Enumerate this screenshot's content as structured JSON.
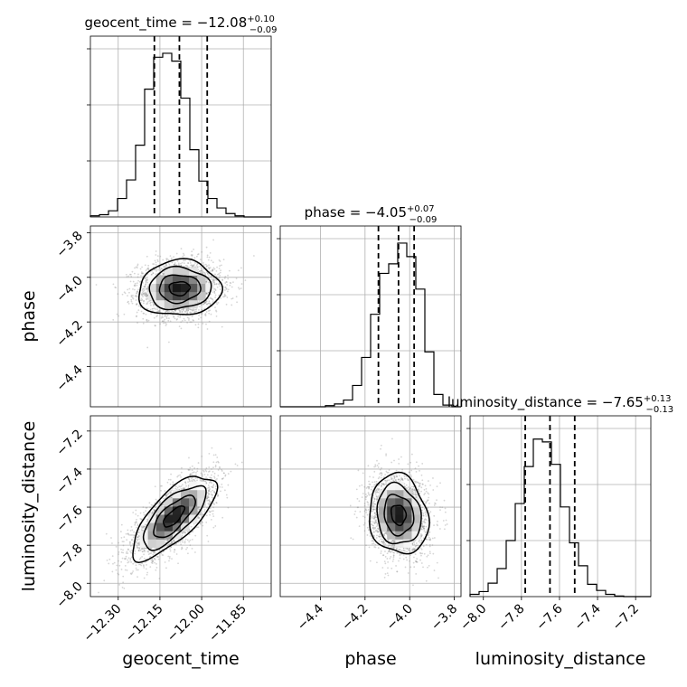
{
  "chart_data": {
    "type": "corner",
    "parameters": [
      "geocent_time",
      "phase",
      "luminosity_distance"
    ],
    "axis_labels": {
      "geocent_time": "geocent_time",
      "phase": "phase",
      "luminosity_distance": "luminosity_distance"
    },
    "ranges": {
      "geocent_time": [
        -12.4,
        -11.75
      ],
      "phase": [
        -4.58,
        -3.77
      ],
      "luminosity_distance": [
        -8.07,
        -7.12
      ]
    },
    "ticks": {
      "geocent_time": [
        -12.3,
        -12.15,
        -12.0,
        -11.85
      ],
      "phase_x": [
        -4.4,
        -4.2,
        -4.0,
        -3.8
      ],
      "phase_y": [
        -3.8,
        -4.0,
        -4.2,
        -4.4
      ],
      "luminosity_distance_x": [
        -8.0,
        -7.8,
        -7.6,
        -7.4,
        -7.2
      ],
      "luminosity_distance_y": [
        -7.2,
        -7.4,
        -7.6,
        -7.8,
        -8.0
      ]
    },
    "tick_labels": {
      "geocent_time": [
        "−12.30",
        "−12.15",
        "−12.00",
        "−11.85"
      ],
      "phase_x": [
        "−4.4",
        "−4.2",
        "−4.0",
        "−3.8"
      ],
      "phase_y": [
        "−3.8",
        "−4.0",
        "−4.2",
        "−4.4"
      ],
      "luminosity_distance_x": [
        "−8.0",
        "−7.8",
        "−7.6",
        "−7.4",
        "−7.2"
      ],
      "luminosity_distance_y": [
        "−7.2",
        "−7.4",
        "−7.6",
        "−7.8",
        "−8.0"
      ]
    },
    "titles": [
      {
        "param": "geocent_time",
        "prefix": "geocent_time = ",
        "median": "−12.08",
        "plus": "+0.10",
        "minus": "−0.09"
      },
      {
        "param": "phase",
        "prefix": "phase = ",
        "median": "−4.05",
        "plus": "+0.07",
        "minus": "−0.09"
      },
      {
        "param": "luminosity_distance",
        "prefix": "luminosity_distance = ",
        "median": "−7.65",
        "plus": "+0.13",
        "minus": "−0.13"
      }
    ],
    "quantiles": {
      "geocent_time": [
        -12.17,
        -12.08,
        -11.98
      ],
      "phase": [
        -4.14,
        -4.05,
        -3.98
      ],
      "luminosity_distance": [
        -7.78,
        -7.65,
        -7.52
      ]
    },
    "histograms": {
      "geocent_time": {
        "edges": [
          -12.4,
          -12.3675,
          -12.335,
          -12.3025,
          -12.27,
          -12.2375,
          -12.205,
          -12.1725,
          -12.14,
          -12.1075,
          -12.075,
          -12.0425,
          -12.01,
          -11.9775,
          -11.945,
          -11.9125,
          -11.88,
          -11.8475,
          -11.815,
          -11.7825,
          -11.75
        ],
        "counts": [
          2,
          4,
          11,
          33,
          66,
          128,
          228,
          285,
          292,
          278,
          212,
          120,
          64,
          33,
          16,
          6,
          2,
          0,
          0,
          0
        ],
        "ymax": 300
      },
      "phase": {
        "edges": [
          -4.58,
          -4.5395,
          -4.499,
          -4.4585,
          -4.418,
          -4.3775,
          -4.337,
          -4.2965,
          -4.256,
          -4.2155,
          -4.175,
          -4.1345,
          -4.094,
          -4.0535,
          -4.013,
          -3.9725,
          -3.932,
          -3.8915,
          -3.851,
          -3.8105,
          -3.77
        ],
        "counts": [
          0,
          0,
          0,
          0,
          0,
          2,
          5,
          12,
          38,
          88,
          165,
          238,
          255,
          292,
          268,
          210,
          98,
          22,
          3,
          0
        ],
        "ymax": 300
      },
      "luminosity_distance": {
        "edges": [
          -8.07,
          -8.0225,
          -7.975,
          -7.9275,
          -7.88,
          -7.8325,
          -7.785,
          -7.7375,
          -7.69,
          -7.6425,
          -7.595,
          -7.5475,
          -7.5,
          -7.4525,
          -7.405,
          -7.3575,
          -7.31,
          -7.2625,
          -7.215,
          -7.1675,
          -7.12
        ],
        "counts": [
          4,
          9,
          24,
          50,
          100,
          166,
          232,
          281,
          276,
          236,
          160,
          96,
          55,
          22,
          11,
          4,
          1,
          0,
          0,
          0
        ],
        "ymax": 300
      }
    },
    "joint": {
      "phase_vs_geocent_time": {
        "mean_x": -12.08,
        "mean_y": -4.05,
        "sd_x": 0.074,
        "sd_y": 0.062,
        "corr": 0.05
      },
      "luminosity_distance_vs_geocent_time": {
        "mean_x": -12.1,
        "mean_y": -7.65,
        "sd_x": 0.075,
        "sd_y": 0.11,
        "corr": 0.72
      },
      "luminosity_distance_vs_phase": {
        "mean_x": -4.05,
        "mean_y": -7.64,
        "sd_x": 0.066,
        "sd_y": 0.105,
        "corr": -0.12
      }
    },
    "contour_levels_sigma": [
      0.5,
      1.0,
      1.5,
      2.0
    ]
  }
}
